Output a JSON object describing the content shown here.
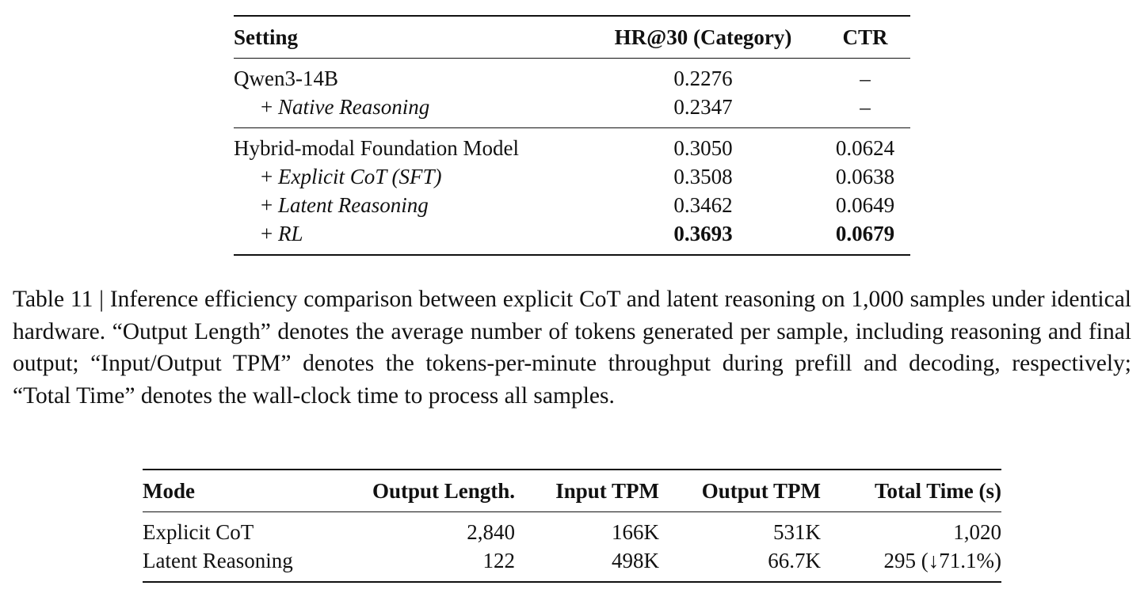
{
  "table1": {
    "columns": [
      "Setting",
      "HR@30 (Category)",
      "CTR"
    ],
    "groups": [
      [
        {
          "label": "Qwen3-14B",
          "cells": [
            "0.2276",
            "–"
          ]
        },
        {
          "prefix": "+",
          "label": "Native Reasoning",
          "cells": [
            "0.2347",
            "–"
          ]
        }
      ],
      [
        {
          "label": "Hybrid-modal Foundation Model",
          "cells": [
            "0.3050",
            "0.0624"
          ]
        },
        {
          "prefix": "+",
          "label": "Explicit CoT (SFT)",
          "cells": [
            "0.3508",
            "0.0638"
          ]
        },
        {
          "prefix": "+",
          "label": "Latent Reasoning",
          "cells": [
            "0.3462",
            "0.0649"
          ]
        },
        {
          "prefix": "+",
          "label": "RL",
          "cells": [
            "0.3693",
            "0.0679"
          ],
          "emphasis": "bold"
        }
      ]
    ]
  },
  "caption": "Table 11 | Inference efficiency comparison between explicit CoT and latent reasoning on 1,000 samples under identical hardware. “Output Length” denotes the average number of tokens generated per sample, including reasoning and final output; “Input/Output TPM” denotes the tokens-per-minute throughput during prefill and decoding, respectively; “Total Time” denotes the wall-clock time to process all samples.",
  "table2": {
    "columns": [
      "Mode",
      "Output Length.",
      "Input TPM",
      "Output TPM",
      "Total Time (s)"
    ],
    "rows": [
      [
        "Explicit CoT",
        "2,840",
        "166K",
        "531K",
        "1,020"
      ],
      [
        "Latent Reasoning",
        "122",
        "498K",
        "66.7K",
        "295 (↓71.1%)"
      ]
    ]
  }
}
